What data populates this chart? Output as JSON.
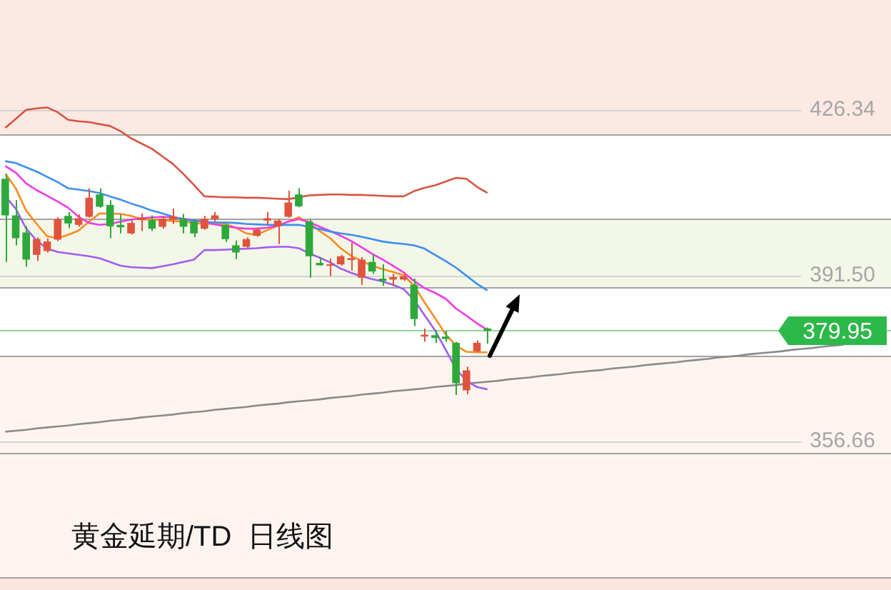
{
  "chart_data": {
    "type": "candlestick",
    "title": "黄金延期/TD  日线图",
    "categories": [
      null,
      null,
      null,
      null,
      null,
      null,
      null,
      null,
      null,
      null,
      null,
      null,
      null,
      null,
      null,
      null,
      null,
      null,
      null,
      null,
      null,
      null,
      null,
      null,
      null,
      null,
      null,
      null,
      null,
      null,
      null,
      null,
      null,
      null,
      null,
      null,
      null,
      null,
      null,
      null,
      null,
      null,
      null,
      null,
      null,
      null,
      null,
      null,
      null,
      null,
      null,
      null,
      null,
      null,
      null,
      null,
      null,
      null,
      null,
      null,
      null,
      null,
      null,
      null,
      null,
      null,
      null,
      null,
      null,
      null,
      null,
      null,
      null,
      null,
      null,
      null,
      null,
      null,
      null,
      null,
      null,
      null,
      null,
      null,
      null
    ],
    "ohlc": [
      [
        411.9,
        412.9,
        394.4,
        404.2
      ],
      [
        404.2,
        407.4,
        397.9,
        399.4
      ],
      [
        400.6,
        401.9,
        393.4,
        394.9
      ],
      [
        395.9,
        399.6,
        394.6,
        399.2
      ],
      [
        396.7,
        399.4,
        396.4,
        398.7
      ],
      [
        399.1,
        403.8,
        398.8,
        403.4
      ],
      [
        404.1,
        404.9,
        401.5,
        402.5
      ],
      [
        402.2,
        404.4,
        401.8,
        403.6
      ],
      [
        403.9,
        409.9,
        403.7,
        407.9
      ],
      [
        408.6,
        409.9,
        405.8,
        406.0
      ],
      [
        406.4,
        407.4,
        399.4,
        401.9
      ],
      [
        402.2,
        404.4,
        400.4,
        401.7
      ],
      [
        400.4,
        403.1,
        400.2,
        402.6
      ],
      [
        403.2,
        404.6,
        400.9,
        403.7
      ],
      [
        403.2,
        404.2,
        400.9,
        401.4
      ],
      [
        401.8,
        404.0,
        401.4,
        403.5
      ],
      [
        403.3,
        405.6,
        402.4,
        404.0
      ],
      [
        403.5,
        404.5,
        400.4,
        401.8
      ],
      [
        402.9,
        403.4,
        399.6,
        400.4
      ],
      [
        401.4,
        404.1,
        401.2,
        403.5
      ],
      [
        403.4,
        404.9,
        402.9,
        404.2
      ],
      [
        402.2,
        402.4,
        398.6,
        399.2
      ],
      [
        397.9,
        398.9,
        395.0,
        396.4
      ],
      [
        397.6,
        399.6,
        397.4,
        399.2
      ],
      [
        399.9,
        401.6,
        399.7,
        401.2
      ],
      [
        403.1,
        404.9,
        402.2,
        403.6
      ],
      [
        401.9,
        403.4,
        398.2,
        403.1
      ],
      [
        403.9,
        409.4,
        403.7,
        406.9
      ],
      [
        408.6,
        409.9,
        405.9,
        406.1
      ],
      [
        402.9,
        403.4,
        391.1,
        395.6
      ],
      [
        394.2,
        395.4,
        393.6,
        393.7
      ],
      [
        393.6,
        395.1,
        391.4,
        393.9
      ],
      [
        393.9,
        395.9,
        393.6,
        395.6
      ],
      [
        394.8,
        398.4,
        392.6,
        395.2
      ],
      [
        391.1,
        395.4,
        389.6,
        394.9
      ],
      [
        394.4,
        395.9,
        391.9,
        392.4
      ],
      [
        390.9,
        393.9,
        389.4,
        390.4
      ],
      [
        390.7,
        391.9,
        389.4,
        391.2
      ],
      [
        390.7,
        392.2,
        390.4,
        391.4
      ],
      [
        389.6,
        390.9,
        380.9,
        382.4
      ],
      [
        378.7,
        380.4,
        377.6,
        379.1
      ],
      [
        379.0,
        380.1,
        377.4,
        378.4
      ],
      [
        378.7,
        379.9,
        377.6,
        378.2
      ],
      [
        377.4,
        377.6,
        366.4,
        368.9
      ],
      [
        367.4,
        372.4,
        366.6,
        371.6
      ],
      [
        375.6,
        377.9,
        375.4,
        377.4
      ],
      [
        380.4,
        380.6,
        377.2,
        379.9
      ],
      null,
      null,
      null,
      null,
      null,
      null,
      null,
      null,
      null,
      null,
      null,
      null,
      null,
      null,
      null,
      null,
      null,
      null,
      null,
      null,
      null,
      null,
      null,
      null,
      null,
      null,
      null,
      null,
      null,
      null,
      null,
      null,
      null,
      null,
      null,
      null,
      null,
      null
    ],
    "colors": [
      "#2da83a",
      "#2da83a",
      "#2da83a",
      "#e0533d",
      "#e0533d",
      "#e0533d",
      "#2da83a",
      "#e0533d",
      "#e0533d",
      "#2da83a",
      "#2da83a",
      "#2da83a",
      "#e0533d",
      "#e0533d",
      "#2da83a",
      "#e0533d",
      "#e0533d",
      "#2da83a",
      "#2da83a",
      "#e0533d",
      "#e0533d",
      "#2da83a",
      "#2da83a",
      "#e0533d",
      "#e0533d",
      "#e0533d",
      "#e0533d",
      "#e0533d",
      "#2da83a",
      "#2da83a",
      "#2da83a",
      "#e0533d",
      "#e0533d",
      "#e0533d",
      "#e0533d",
      "#2da83a",
      "#2da83a",
      "#e0533d",
      "#e0533d",
      "#2da83a",
      "#e0533d",
      "#2da83a",
      "#2da83a",
      "#2da83a",
      "#e0533d",
      "#e0533d",
      "#2da83a",
      null,
      null,
      null,
      null,
      null,
      null,
      null,
      null,
      null,
      null,
      null,
      null,
      null,
      null,
      null,
      null,
      null,
      null,
      null,
      null,
      null,
      null,
      null,
      null,
      null,
      null,
      null,
      null,
      null,
      null,
      null,
      null,
      null,
      null,
      null,
      null,
      null,
      null
    ],
    "series": [
      {
        "type": "line",
        "color": "#d9533f",
        "values": [
          422.6,
          424.5,
          426.4,
          426.7,
          426.9,
          425.9,
          424.3,
          424.0,
          423.8,
          423.4,
          423.0,
          421.9,
          420.4,
          419.3,
          418.2,
          416.6,
          415.0,
          412.9,
          410.6,
          408.2,
          408.1,
          408.0,
          408.0,
          407.9,
          407.9,
          407.8,
          407.7,
          407.6,
          408.0,
          408.4,
          408.5,
          408.6,
          408.6,
          408.5,
          408.5,
          408.4,
          408.3,
          408.2,
          408.2,
          409.3,
          410.0,
          410.5,
          411.3,
          412.1,
          411.9,
          410.2,
          408.9,
          null,
          null,
          null,
          null,
          null,
          null,
          null,
          null,
          null,
          null,
          null,
          null,
          null,
          null,
          null,
          null,
          null,
          null,
          null,
          null,
          null,
          null,
          null,
          null,
          null,
          null,
          null,
          null,
          null,
          null,
          null,
          null,
          null,
          null,
          null,
          null,
          null,
          null
        ]
      },
      {
        "type": "line",
        "color": "#3d8ef0",
        "values": [
          415.6,
          415.2,
          414.3,
          413.4,
          412.3,
          411.2,
          409.9,
          409.6,
          409.3,
          408.9,
          408.2,
          407.5,
          406.7,
          406.0,
          405.2,
          404.6,
          403.9,
          403.3,
          403.1,
          402.8,
          402.7,
          402.7,
          402.6,
          402.4,
          402.3,
          402.2,
          402.2,
          402.2,
          402.2,
          401.8,
          401.3,
          400.8,
          400.4,
          400.1,
          399.7,
          399.2,
          398.7,
          398.4,
          398.2,
          397.9,
          397.2,
          395.9,
          394.6,
          393.2,
          391.5,
          389.8,
          388.4,
          null,
          null,
          null,
          null,
          null,
          null,
          null,
          null,
          null,
          null,
          null,
          null,
          null,
          null,
          null,
          null,
          null,
          null,
          null,
          null,
          null,
          null,
          null,
          null,
          null,
          null,
          null,
          null,
          null,
          null,
          null,
          null,
          null,
          null,
          null,
          null,
          null,
          null
        ]
      },
      {
        "type": "line",
        "color": "#f03ae6",
        "values": [
          414.6,
          413.2,
          410.9,
          409.5,
          408.3,
          407.1,
          405.8,
          403.9,
          402.6,
          402.2,
          402.4,
          402.9,
          403.3,
          403.6,
          403.8,
          403.9,
          403.8,
          403.5,
          403.2,
          402.8,
          402.3,
          401.9,
          401.6,
          401.4,
          401.4,
          401.6,
          402.0,
          402.9,
          403.4,
          402.8,
          401.8,
          400.9,
          399.9,
          398.8,
          397.5,
          396.1,
          394.9,
          393.6,
          392.2,
          390.4,
          388.9,
          387.9,
          386.7,
          384.6,
          383.1,
          381.5,
          380.1,
          null,
          null,
          null,
          null,
          null,
          null,
          null,
          null,
          null,
          null,
          null,
          null,
          null,
          null,
          null,
          null,
          null,
          null,
          null,
          null,
          null,
          null,
          null,
          null,
          null,
          null,
          null,
          null,
          null,
          null,
          null,
          null,
          null,
          null,
          null,
          null,
          null,
          null
        ]
      },
      {
        "type": "line",
        "color": "#ff8a1f",
        "values": [
          413.0,
          409.9,
          405.2,
          402.4,
          399.8,
          399.4,
          400.1,
          401.0,
          402.9,
          404.6,
          404.6,
          404.5,
          404.1,
          403.4,
          403.3,
          403.2,
          403.0,
          402.9,
          402.6,
          402.4,
          402.4,
          402.4,
          401.6,
          400.4,
          400.1,
          401.1,
          402.0,
          402.9,
          403.8,
          402.6,
          400.9,
          399.4,
          397.3,
          395.7,
          394.6,
          393.6,
          392.9,
          392.3,
          391.6,
          389.4,
          385.9,
          382.6,
          379.2,
          376.8,
          375.5,
          375.4,
          375.4,
          null,
          null,
          null,
          null,
          null,
          null,
          null,
          null,
          null,
          null,
          null,
          null,
          null,
          null,
          null,
          null,
          null,
          null,
          null,
          null,
          null,
          null,
          null,
          null,
          null,
          null,
          null,
          null,
          null,
          null,
          null,
          null,
          null,
          null,
          null,
          null,
          null,
          null
        ]
      },
      {
        "type": "line",
        "color": "#a35cf2",
        "values": [
          408.2,
          405.6,
          401.4,
          398.9,
          397.2,
          396.5,
          396.2,
          395.9,
          395.6,
          395.2,
          394.4,
          393.6,
          393.3,
          393.2,
          393.1,
          393.5,
          393.9,
          394.4,
          394.9,
          396.9,
          396.9,
          397.0,
          397.1,
          397.2,
          397.3,
          397.5,
          397.6,
          397.6,
          397.3,
          396.2,
          395.3,
          394.3,
          393.0,
          392.1,
          391.4,
          390.8,
          390.3,
          389.6,
          388.7,
          386.4,
          383.2,
          380.0,
          376.0,
          371.9,
          369.4,
          368.1,
          367.6,
          null,
          null,
          null,
          null,
          null,
          null,
          null,
          null,
          null,
          null,
          null,
          null,
          null,
          null,
          null,
          null,
          null,
          null,
          null,
          null,
          null,
          null,
          null,
          null,
          null,
          null,
          null,
          null,
          null,
          null,
          null,
          null,
          null,
          null,
          null,
          null,
          null,
          null
        ]
      },
      {
        "type": "line",
        "color": "#8a8a8a",
        "values": [
          358.7,
          358.9,
          359.1,
          359.4,
          359.6,
          359.8,
          360.0,
          360.3,
          360.5,
          360.7,
          361.0,
          361.2,
          361.4,
          361.7,
          361.9,
          362.1,
          362.3,
          362.6,
          362.8,
          363.0,
          363.3,
          363.5,
          363.7,
          363.9,
          364.2,
          364.4,
          364.6,
          364.9,
          365.1,
          365.3,
          365.5,
          365.8,
          366.0,
          366.2,
          366.5,
          366.7,
          366.9,
          367.2,
          367.4,
          367.6,
          367.8,
          368.1,
          368.3,
          368.5,
          368.8,
          369.0,
          369.2,
          369.4,
          369.7,
          369.9,
          370.1,
          370.4,
          370.6,
          370.8,
          371.1,
          371.3,
          371.5,
          371.7,
          372.0,
          372.2,
          372.4,
          372.7,
          372.9,
          373.1,
          373.3,
          373.6,
          373.8,
          374.0,
          374.3,
          374.5,
          374.7,
          375.0,
          375.2,
          375.4,
          375.6,
          375.9,
          376.1,
          376.3,
          376.6,
          376.8,
          377.0,
          null,
          null,
          null,
          null
        ]
      }
    ],
    "ylim": [
      325.4,
      449.5
    ],
    "yticks": [
      426.34,
      {
        "value": 391.5,
        "label": "391.50"
      },
      356.66
    ],
    "grid": "y",
    "marker": "none",
    "ref_lines": [
      {
        "axis": "y",
        "value": 421.2,
        "color": "#a3a3a3"
      },
      {
        "axis": "y",
        "value": 403.4,
        "color": "#a3a3a3"
      },
      {
        "axis": "y",
        "value": 389.1,
        "color": "#a3a3a3"
      },
      {
        "axis": "y",
        "value": 374.7,
        "color": "#a3a3a3"
      },
      {
        "axis": "y",
        "value": 354.3,
        "color": "#a3a3a3"
      },
      {
        "axis": "y",
        "value": 328.1,
        "color": "#a3a3a3"
      },
      {
        "axis": "y",
        "value": 379.95,
        "label": "379.95",
        "color": "#2db84a"
      }
    ],
    "bands": [
      {
        "axis": "y",
        "from": 421.2,
        "to": 449.5,
        "color": "#fce9e3"
      },
      {
        "axis": "y",
        "from": 389.1,
        "to": 403.4,
        "color": "#f3f7e8"
      },
      {
        "axis": "y",
        "from": 328.1,
        "to": 374.7,
        "color": "#fdf4ef"
      },
      {
        "axis": "y",
        "from": 325.4,
        "to": 328.1,
        "color": "#fbe5dd"
      }
    ]
  }
}
